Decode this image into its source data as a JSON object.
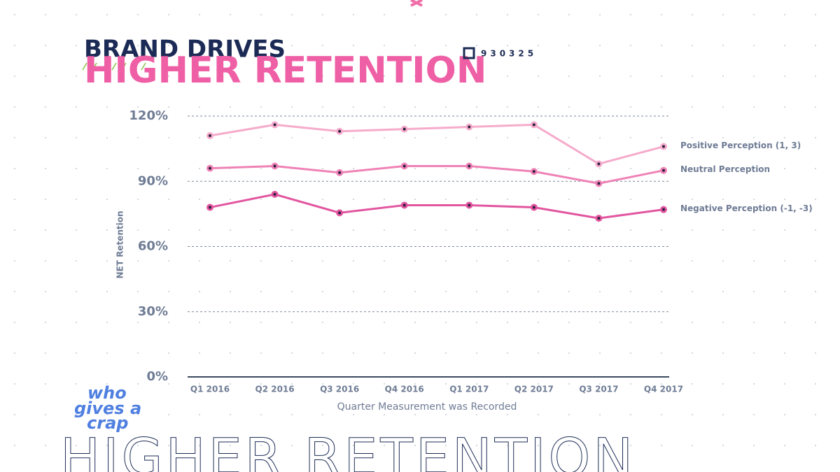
{
  "chart_data": {
    "type": "line",
    "title": "BRAND DRIVES",
    "subtitle": "HIGHER RETENTION",
    "badge": "930325",
    "brand": [
      "who",
      "gives a",
      "crap"
    ],
    "footer": "HIGHER RETENTION",
    "y_label": "NET Retention",
    "x_label": "Quarter Measurement was Recorded",
    "categories": [
      "Q1 2016",
      "Q2 2016",
      "Q3 2016",
      "Q4 2016",
      "Q1 2017",
      "Q2 2017",
      "Q3 2017",
      "Q4 2017"
    ],
    "series": [
      {
        "name": "Positive Perception (1, 3)",
        "color": "#f6abcb",
        "values": [
          111,
          116,
          113,
          114,
          115,
          116,
          98,
          106
        ]
      },
      {
        "name": "Neutral Perception",
        "color": "#ef82b6",
        "values": [
          96,
          97,
          94,
          97,
          97,
          94.5,
          89,
          95
        ]
      },
      {
        "name": "Negative Perception (-1, -3)",
        "color": "#e2559f",
        "values": [
          78,
          84,
          75.5,
          79,
          79,
          78,
          73,
          77
        ]
      }
    ],
    "ylim": [
      0,
      120
    ],
    "yticks": [
      {
        "value": 0,
        "label": "0%"
      },
      {
        "value": 30,
        "label": "30%"
      },
      {
        "value": 60,
        "label": "60%"
      },
      {
        "value": 90,
        "label": "90%"
      },
      {
        "value": 120,
        "label": "120%"
      }
    ],
    "grid": true
  }
}
